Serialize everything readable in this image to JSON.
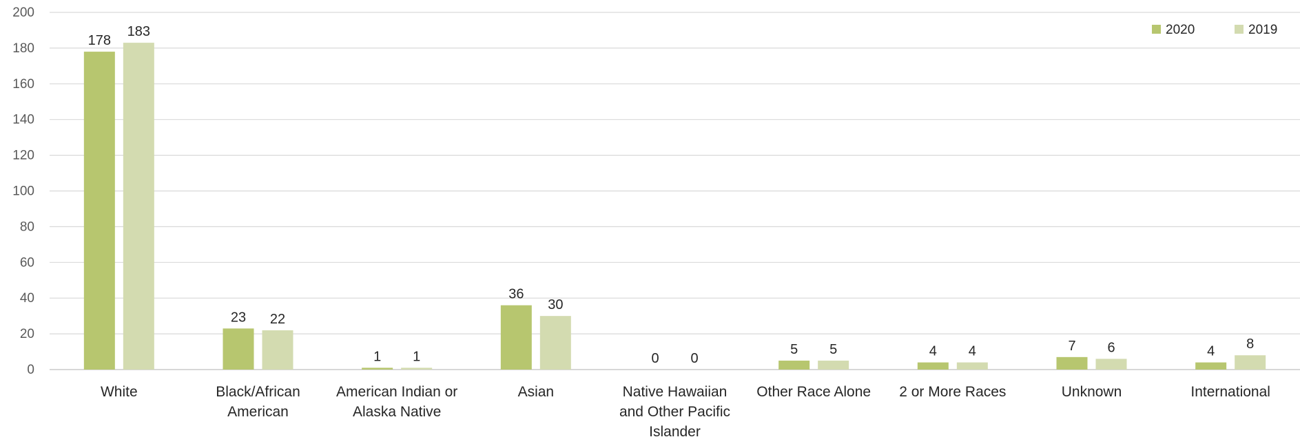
{
  "chart_data": {
    "type": "bar",
    "categories": [
      "White",
      "Black/African American",
      "American Indian or Alaska Native",
      "Asian",
      "Native Hawaiian and Other Pacific Islander",
      "Other Race Alone",
      "2 or More Races",
      "Unknown",
      "International"
    ],
    "category_lines": [
      [
        "White"
      ],
      [
        "Black/African",
        "American"
      ],
      [
        "American Indian or",
        "Alaska Native"
      ],
      [
        "Asian"
      ],
      [
        "Native Hawaiian",
        "and Other Pacific",
        "Islander"
      ],
      [
        "Other Race Alone"
      ],
      [
        "2 or More Races"
      ],
      [
        "Unknown"
      ],
      [
        "International"
      ]
    ],
    "series": [
      {
        "name": "2020",
        "color": "#b7c66f",
        "values": [
          178,
          23,
          1,
          36,
          0,
          5,
          4,
          7,
          4
        ]
      },
      {
        "name": "2019",
        "color": "#d3dbb0",
        "values": [
          183,
          22,
          1,
          30,
          0,
          5,
          4,
          6,
          8
        ]
      }
    ],
    "ylim": [
      0,
      200
    ],
    "yticks": [
      0,
      20,
      40,
      60,
      80,
      100,
      120,
      140,
      160,
      180,
      200
    ],
    "grid": true,
    "legend_position": "top-right",
    "title": "",
    "xlabel": "",
    "ylabel": ""
  }
}
